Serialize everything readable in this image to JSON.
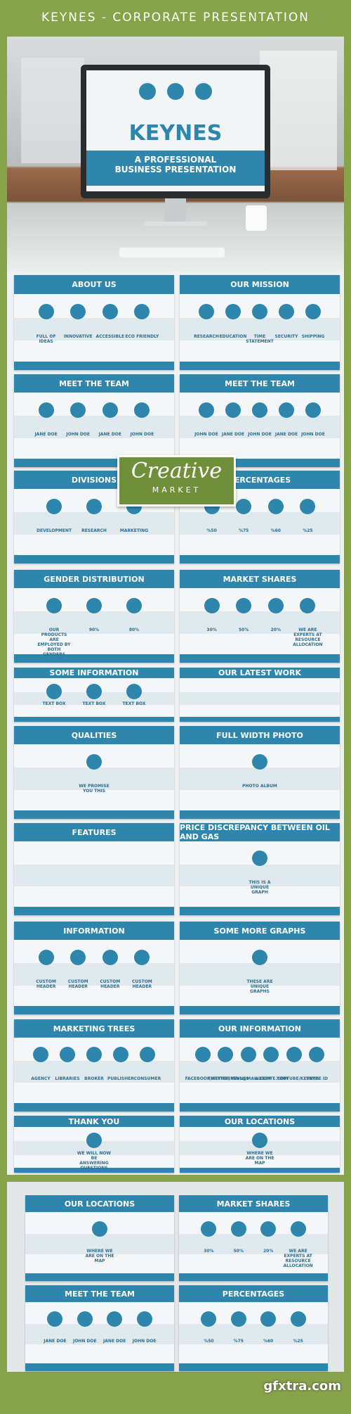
{
  "header": {
    "title": "KEYNES - CORPORATE PRESENTATION"
  },
  "hero": {
    "title": "KEYNES",
    "subtitle": "A PROFESSIONAL BUSINESS PRESENTATION"
  },
  "slides": [
    {
      "title": "About Us",
      "items": [
        "FULL OF IDEAS",
        "INNOVATIVE",
        "ACCESSIBLE",
        "ECO FRIENDLY"
      ]
    },
    {
      "title": "Our Mission",
      "items": [
        "RESEARCH",
        "EDUCATION",
        "TIME STATEMENT",
        "SECURITY",
        "SHIPPING"
      ]
    },
    {
      "title": "Meet the Team",
      "items": [
        "JANE DOE",
        "JOHN DOE",
        "JANE DOE",
        "JOHN DOE"
      ]
    },
    {
      "title": "Meet the Team",
      "items": [
        "JOHN DOE",
        "JANE DOE",
        "JOHN DOE",
        "JANE DOE",
        "JOHN DOE"
      ]
    },
    {
      "title": "Divisions",
      "items": [
        "DEVELOPMENT",
        "RESEARCH",
        "MARKETING"
      ]
    },
    {
      "title": "Percentages",
      "items": [
        "%50",
        "%75",
        "%60",
        "%25"
      ]
    },
    {
      "title": "Gender Distribution",
      "items": [
        "OUR PRODUCTS ARE EMPLOYED BY BOTH GENDERS",
        "90%",
        "80%"
      ]
    },
    {
      "title": "Market Shares",
      "items": [
        "30%",
        "50%",
        "20%",
        "WE ARE EXPERTS AT RESOURCE ALLOCATION"
      ]
    },
    {
      "title": "Some Information",
      "items": [
        "TEXT BOX",
        "TEXT BOX",
        "TEXT BOX"
      ]
    },
    {
      "title": "Our Latest Work",
      "items": []
    },
    {
      "title": "Qualities",
      "items": [
        "WE PROMISE YOU THIS"
      ]
    },
    {
      "title": "Full Width Photo",
      "items": [
        "PHOTO ALBUM"
      ]
    },
    {
      "title": "Features",
      "items": []
    },
    {
      "title": "Price Discrepancy Between Oil and Gas",
      "items": [
        "THIS IS A UNIQUE GRAPH"
      ]
    },
    {
      "title": "Information",
      "items": [
        "CUSTOM HEADER",
        "CUSTOM HEADER",
        "CUSTOM HEADER",
        "CUSTOM HEADER"
      ]
    },
    {
      "title": "Some More Graphs",
      "items": [
        "THESE ARE UNIQUE GRAPHS"
      ]
    },
    {
      "title": "Marketing Trees",
      "items": [
        "AGENCY",
        "LIBRARIES",
        "BROKER",
        "PUBLISHER",
        "CONSUMER"
      ]
    },
    {
      "title": "Our Information",
      "items": [
        "FACEBOOK/KEYNES",
        "TWITTER/KEYNES",
        "MAIL@MAIL.COM",
        "WEBSITE.COM",
        "YOUTUBE/KEYNES",
        "SKYPE ID"
      ]
    },
    {
      "title": "Thank You",
      "items": [
        "WE WILL NOW BE ANSWERING QUESTIONS"
      ]
    },
    {
      "title": "Our Locations",
      "items": [
        "WHERE WE ARE ON THE MAP"
      ]
    }
  ],
  "featured": [
    {
      "title": "Our Locations",
      "items": [
        "WHERE WE ARE ON THE MAP"
      ]
    },
    {
      "title": "Market Shares",
      "items": [
        "30%",
        "50%",
        "20%",
        "WE ARE EXPERTS AT RESOURCE ALLOCATION"
      ]
    },
    {
      "title": "Meet the Team",
      "items": [
        "JANE DOE",
        "JOHN DOE",
        "JANE DOE",
        "JOHN DOE"
      ]
    },
    {
      "title": "Percentages",
      "items": [
        "%50",
        "%75",
        "%60",
        "%25"
      ]
    }
  ],
  "badge": {
    "top": "Creative",
    "bottom": "MARKET"
  },
  "watermark": "gfxtra.com"
}
